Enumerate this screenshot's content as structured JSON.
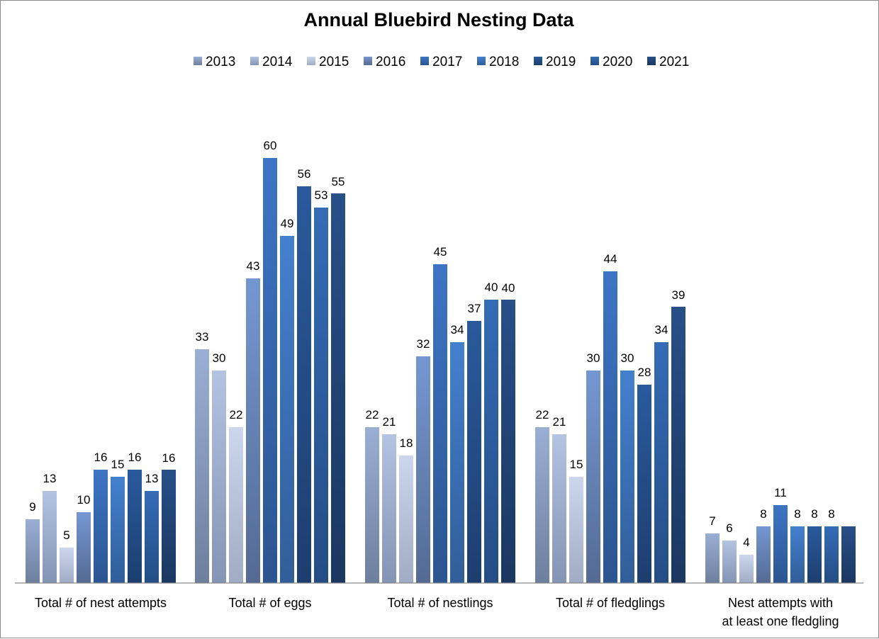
{
  "chart_data": {
    "type": "bar",
    "title": "Annual Bluebird Nesting Data",
    "xlabel": "",
    "ylabel": "",
    "ylim": [
      0,
      60
    ],
    "grid": false,
    "legend_position": "top",
    "categories": [
      "Total # of nest attempts",
      "Total # of eggs",
      "Total # of nestlings",
      "Total # of fledglings",
      "Nest attempts with at least one fledgling"
    ],
    "series": [
      {
        "name": "2013",
        "values": [
          9,
          33,
          22,
          22,
          7
        ],
        "color_top": "#9aafd5",
        "color_bottom": "#6d7f9c"
      },
      {
        "name": "2014",
        "values": [
          13,
          30,
          21,
          21,
          6
        ],
        "color_top": "#b3c3e2",
        "color_bottom": "#8394b4"
      },
      {
        "name": "2015",
        "values": [
          5,
          22,
          18,
          15,
          4
        ],
        "color_top": "#ccd7ee",
        "color_bottom": "#a0acc4"
      },
      {
        "name": "2016",
        "values": [
          10,
          43,
          32,
          30,
          8
        ],
        "color_top": "#7597d1",
        "color_bottom": "#546a93"
      },
      {
        "name": "2017",
        "values": [
          16,
          60,
          45,
          44,
          11
        ],
        "color_top": "#3d75c4",
        "color_bottom": "#2c5591"
      },
      {
        "name": "2018",
        "values": [
          15,
          49,
          34,
          30,
          8
        ],
        "color_top": "#4381cf",
        "color_bottom": "#305e98"
      },
      {
        "name": "2019",
        "values": [
          16,
          56,
          37,
          28,
          8
        ],
        "color_top": "#2a5a9d",
        "color_bottom": "#1c3e6f"
      },
      {
        "name": "2020",
        "values": [
          13,
          53,
          40,
          34,
          8
        ],
        "color_top": "#346cb6",
        "color_bottom": "#244d84"
      },
      {
        "name": "2021",
        "values": [
          16,
          55,
          40,
          39,
          8
        ],
        "color_top": "#284f88",
        "color_bottom": "#1a3760"
      }
    ],
    "data_labels": [
      [
        "9",
        "33",
        "22",
        "22",
        "7"
      ],
      [
        "13",
        "30",
        "21",
        "21",
        "6"
      ],
      [
        "5",
        "22",
        "18",
        "15",
        "4"
      ],
      [
        "10",
        "43",
        "32",
        "30",
        "8"
      ],
      [
        "16",
        "60",
        "45",
        "44",
        "11"
      ],
      [
        "15",
        "49",
        "34",
        "30",
        "8"
      ],
      [
        "16",
        "56",
        "37",
        "28",
        "8"
      ],
      [
        "13",
        "53",
        "40",
        "34",
        "8"
      ],
      [
        "16",
        "55",
        "40",
        "39",
        ""
      ]
    ]
  }
}
